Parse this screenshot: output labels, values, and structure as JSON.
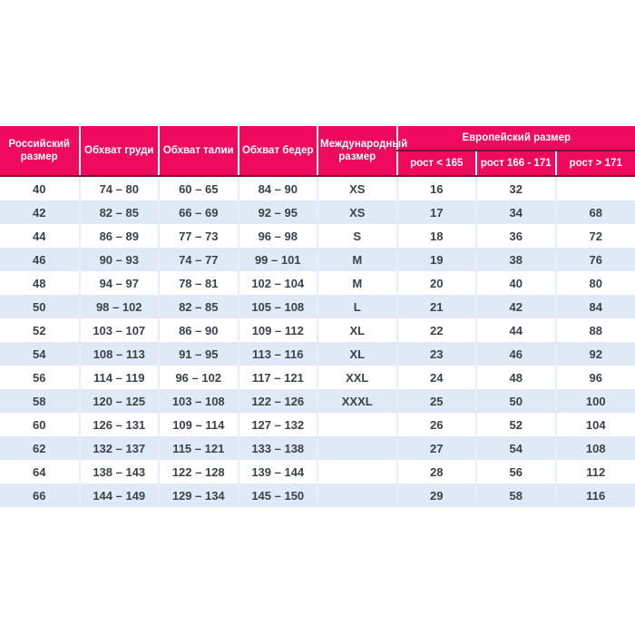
{
  "theme": {
    "header_bg": "#ee0a5c",
    "header_text": "#ffffff",
    "header_bottom_line": "#7a1033",
    "alt_row_bg": "#dfeaf6",
    "cell_separator": "#e7eef7",
    "body_text": "#3c4249",
    "page_bg": "#ffffff"
  },
  "table": {
    "headers": {
      "russian_size": "Российский размер",
      "chest": "Обхват груди",
      "waist": "Обхват талии",
      "hips": "Обхват бедер",
      "international": "Международный размер",
      "european": "Европейский размер",
      "height_lt_165": "рост < 165",
      "height_166_171": "рост 166 - 171",
      "height_gt_171": "рост > 171"
    },
    "rows": [
      [
        "40",
        "74 – 80",
        "60 – 65",
        "84 – 90",
        "XS",
        "16",
        "32",
        ""
      ],
      [
        "42",
        "82 – 85",
        "66 – 69",
        "92 – 95",
        "XS",
        "17",
        "34",
        "68"
      ],
      [
        "44",
        "86 – 89",
        "77 – 73",
        "96 – 98",
        "S",
        "18",
        "36",
        "72"
      ],
      [
        "46",
        "90 – 93",
        "74 – 77",
        "99 – 101",
        "M",
        "19",
        "38",
        "76"
      ],
      [
        "48",
        "94 – 97",
        "78 – 81",
        "102 – 104",
        "M",
        "20",
        "40",
        "80"
      ],
      [
        "50",
        "98 – 102",
        "82 – 85",
        "105 – 108",
        "L",
        "21",
        "42",
        "84"
      ],
      [
        "52",
        "103 – 107",
        "86 – 90",
        "109 – 112",
        "XL",
        "22",
        "44",
        "88"
      ],
      [
        "54",
        "108 – 113",
        "91 – 95",
        "113 – 116",
        "XL",
        "23",
        "46",
        "92"
      ],
      [
        "56",
        "114 – 119",
        "96 – 102",
        "117 – 121",
        "XXL",
        "24",
        "48",
        "96"
      ],
      [
        "58",
        "120 – 125",
        "103 – 108",
        "122 – 126",
        "XXXL",
        "25",
        "50",
        "100"
      ],
      [
        "60",
        "126 – 131",
        "109 – 114",
        "127 – 132",
        "",
        "26",
        "52",
        "104"
      ],
      [
        "62",
        "132 – 137",
        "115 – 121",
        "133 – 138",
        "",
        "27",
        "54",
        "108"
      ],
      [
        "64",
        "138 – 143",
        "122 – 128",
        "139 – 144",
        "",
        "28",
        "56",
        "112"
      ],
      [
        "66",
        "144 – 149",
        "129 – 134",
        "145 – 150",
        "",
        "29",
        "58",
        "116"
      ]
    ]
  }
}
